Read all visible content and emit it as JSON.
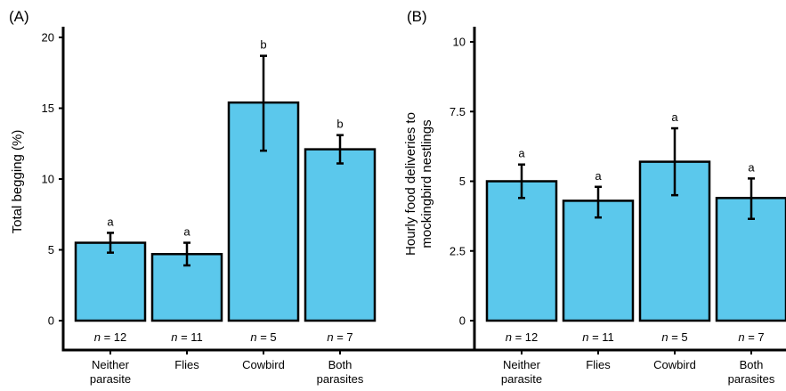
{
  "chart_data": [
    {
      "type": "bar",
      "panel_label": "(A)",
      "ylabel": "Total begging (%)",
      "ylim": [
        0,
        20
      ],
      "yticks": [
        0,
        5,
        10,
        15,
        20
      ],
      "ytick_labels": [
        "0",
        "5",
        "10",
        "15",
        "20"
      ],
      "categories": [
        [
          "Neither",
          "parasite"
        ],
        [
          "Flies"
        ],
        [
          "Cowbird"
        ],
        [
          "Both",
          "parasites"
        ]
      ],
      "values": [
        5.5,
        4.7,
        15.4,
        12.1
      ],
      "error_low": [
        4.8,
        3.9,
        12.0,
        11.1
      ],
      "error_high": [
        6.2,
        5.5,
        18.7,
        13.1
      ],
      "significance": [
        "a",
        "a",
        "b",
        "b"
      ],
      "n_labels": [
        "= 12",
        "= 11",
        "= 5",
        "= 7"
      ],
      "bar_color": "#5bc8ec",
      "grid": false
    },
    {
      "type": "bar",
      "panel_label": "(B)",
      "ylabel": [
        "Hourly food deliveries to",
        "mockingbird nestlings"
      ],
      "ylim": [
        0,
        10
      ],
      "yticks": [
        0,
        2.5,
        5,
        7.5,
        10
      ],
      "ytick_labels": [
        "0",
        "2.5",
        "5",
        "7.5",
        "10"
      ],
      "categories": [
        [
          "Neither",
          "parasite"
        ],
        [
          "Flies"
        ],
        [
          "Cowbird"
        ],
        [
          "Both",
          "parasites"
        ]
      ],
      "values": [
        5.0,
        4.3,
        5.7,
        4.4
      ],
      "error_low": [
        4.4,
        3.7,
        4.5,
        3.65
      ],
      "error_high": [
        5.6,
        4.8,
        6.9,
        5.1
      ],
      "significance": [
        "a",
        "a",
        "a",
        "a"
      ],
      "n_labels": [
        "= 12",
        "= 11",
        "= 5",
        "= 7"
      ],
      "bar_color": "#5bc8ec",
      "grid": false
    }
  ]
}
